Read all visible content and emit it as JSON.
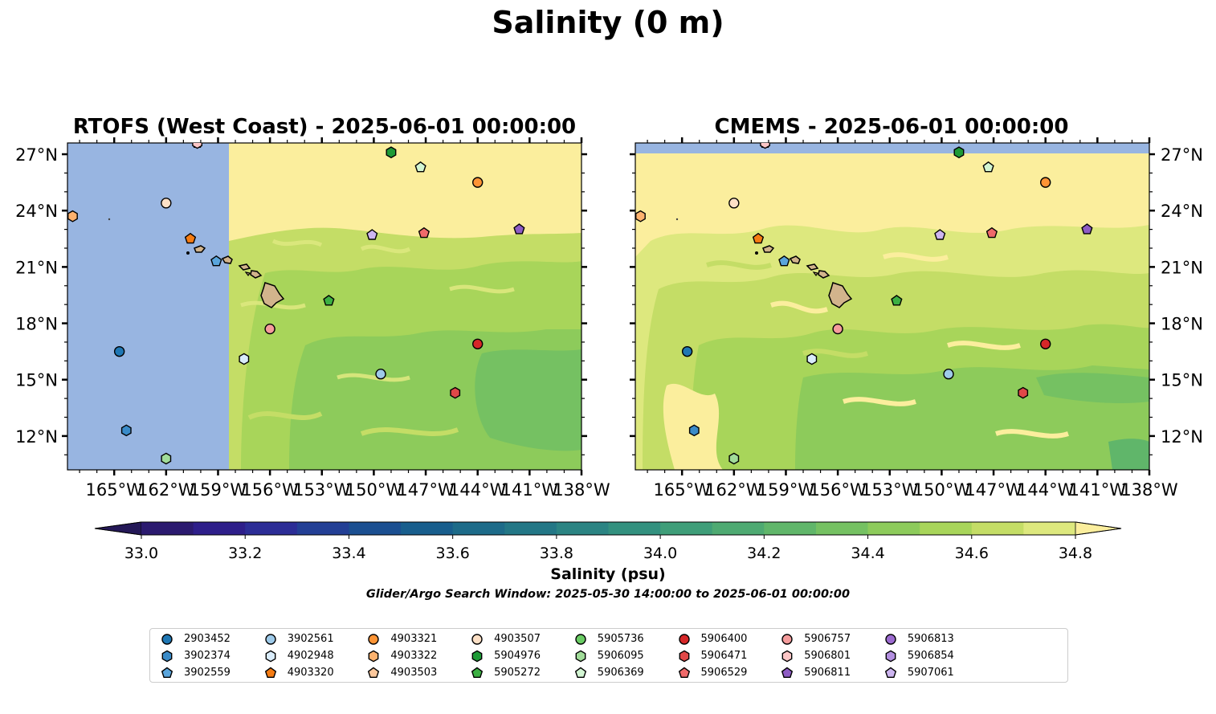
{
  "title": "Salinity (0 m)",
  "panels": [
    {
      "id": "rtofs",
      "title": "RTOFS (West Coast) - 2025-06-01 00:00:00"
    },
    {
      "id": "cmems",
      "title": "CMEMS - 2025-06-01 00:00:00"
    }
  ],
  "axes": {
    "lon_ticks": [
      "165°W",
      "162°W",
      "159°W",
      "156°W",
      "153°W",
      "150°W",
      "147°W",
      "144°W",
      "141°W",
      "138°W"
    ],
    "lat_ticks": [
      "27°N",
      "24°N",
      "21°N",
      "18°N",
      "15°N",
      "12°N"
    ]
  },
  "colorbar": {
    "label": "Salinity (psu)",
    "tick_labels": [
      "33.0",
      "33.2",
      "33.4",
      "33.6",
      "33.8",
      "34.0",
      "34.2",
      "34.4",
      "34.6",
      "34.8"
    ],
    "colors": [
      "#2b1a6f",
      "#2e1e8a",
      "#2c2d96",
      "#233f95",
      "#1b4f91",
      "#185e8d",
      "#1d6b89",
      "#237786",
      "#2b8483",
      "#33917f",
      "#3f9e79",
      "#4eaa72",
      "#60b66a",
      "#75c162",
      "#8dcb5b",
      "#a8d55a",
      "#c4dd66",
      "#dde87e"
    ],
    "extend_under": "#241857",
    "extend_over": "#fbee9d"
  },
  "search_window": "Glider/Argo Search Window: 2025-05-30 14:00:00 to 2025-06-01 00:00:00",
  "legend": [
    {
      "id": "2903452",
      "shape": "circle",
      "color": "#1f77b4"
    },
    {
      "id": "3902374",
      "shape": "hexagon",
      "color": "#3a8bc8"
    },
    {
      "id": "3902559",
      "shape": "pentagon",
      "color": "#5aa5dc"
    },
    {
      "id": "3902561",
      "shape": "circle",
      "color": "#9ecae9"
    },
    {
      "id": "4902948",
      "shape": "hexagon",
      "color": "#d9ecfb"
    },
    {
      "id": "4903320",
      "shape": "pentagon",
      "color": "#f57c13"
    },
    {
      "id": "4903321",
      "shape": "circle",
      "color": "#fd9435"
    },
    {
      "id": "4903322",
      "shape": "hexagon",
      "color": "#fdb26e"
    },
    {
      "id": "4903503",
      "shape": "pentagon",
      "color": "#fdc89c"
    },
    {
      "id": "4903507",
      "shape": "circle",
      "color": "#fde0c6"
    },
    {
      "id": "5904976",
      "shape": "hexagon",
      "color": "#1e9a36"
    },
    {
      "id": "5905272",
      "shape": "pentagon",
      "color": "#3cb043"
    },
    {
      "id": "5905736",
      "shape": "circle",
      "color": "#6acc64"
    },
    {
      "id": "5906095",
      "shape": "hexagon",
      "color": "#a1dc99"
    },
    {
      "id": "5906369",
      "shape": "pentagon",
      "color": "#d3f6d3"
    },
    {
      "id": "5906400",
      "shape": "circle",
      "color": "#d62728"
    },
    {
      "id": "5906471",
      "shape": "hexagon",
      "color": "#e04848"
    },
    {
      "id": "5906529",
      "shape": "pentagon",
      "color": "#ef6a6a"
    },
    {
      "id": "5906757",
      "shape": "circle",
      "color": "#f59c9c"
    },
    {
      "id": "5906801",
      "shape": "hexagon",
      "color": "#fcc6c6"
    },
    {
      "id": "5906811",
      "shape": "pentagon",
      "color": "#8e5cc4"
    },
    {
      "id": "5906813",
      "shape": "circle",
      "color": "#9c6bd0"
    },
    {
      "id": "5906854",
      "shape": "hexagon",
      "color": "#b38fe0"
    },
    {
      "id": "5907061",
      "shape": "pentagon",
      "color": "#cdb5f0"
    }
  ],
  "floats": [
    {
      "id": "2903452",
      "lon": -164.7,
      "lat": 16.5
    },
    {
      "id": "3902374",
      "lon": -164.3,
      "lat": 12.3
    },
    {
      "id": "3902559",
      "lon": -159.1,
      "lat": 21.3
    },
    {
      "id": "3902561",
      "lon": -149.6,
      "lat": 15.3
    },
    {
      "id": "4902948",
      "lon": -157.5,
      "lat": 16.1
    },
    {
      "id": "4903320",
      "lon": -160.6,
      "lat": 22.5
    },
    {
      "id": "4903321",
      "lon": -144.0,
      "lat": 25.5
    },
    {
      "id": "4903322",
      "lon": -167.4,
      "lat": 23.7
    },
    {
      "id": "4903503",
      "lon": -160.2,
      "lat": 27.6
    },
    {
      "id": "4903507",
      "lon": -162.0,
      "lat": 24.4
    },
    {
      "id": "5904976",
      "lon": -149.0,
      "lat": 27.1
    },
    {
      "id": "5905272",
      "lon": -152.6,
      "lat": 19.2
    },
    {
      "id": "5906095",
      "lon": -162.0,
      "lat": 10.8
    },
    {
      "id": "5906369",
      "lon": -147.3,
      "lat": 26.3
    },
    {
      "id": "5906400",
      "lon": -144.0,
      "lat": 16.9
    },
    {
      "id": "5906471",
      "lon": -145.3,
      "lat": 14.3
    },
    {
      "id": "5906529",
      "lon": -147.1,
      "lat": 22.8
    },
    {
      "id": "5906757",
      "lon": -156.0,
      "lat": 17.7
    },
    {
      "id": "5906801",
      "lon": -160.2,
      "lat": 27.6
    },
    {
      "id": "5906811",
      "lon": -141.6,
      "lat": 23.0
    },
    {
      "id": "5907061",
      "lon": -150.1,
      "lat": 22.7
    }
  ]
}
